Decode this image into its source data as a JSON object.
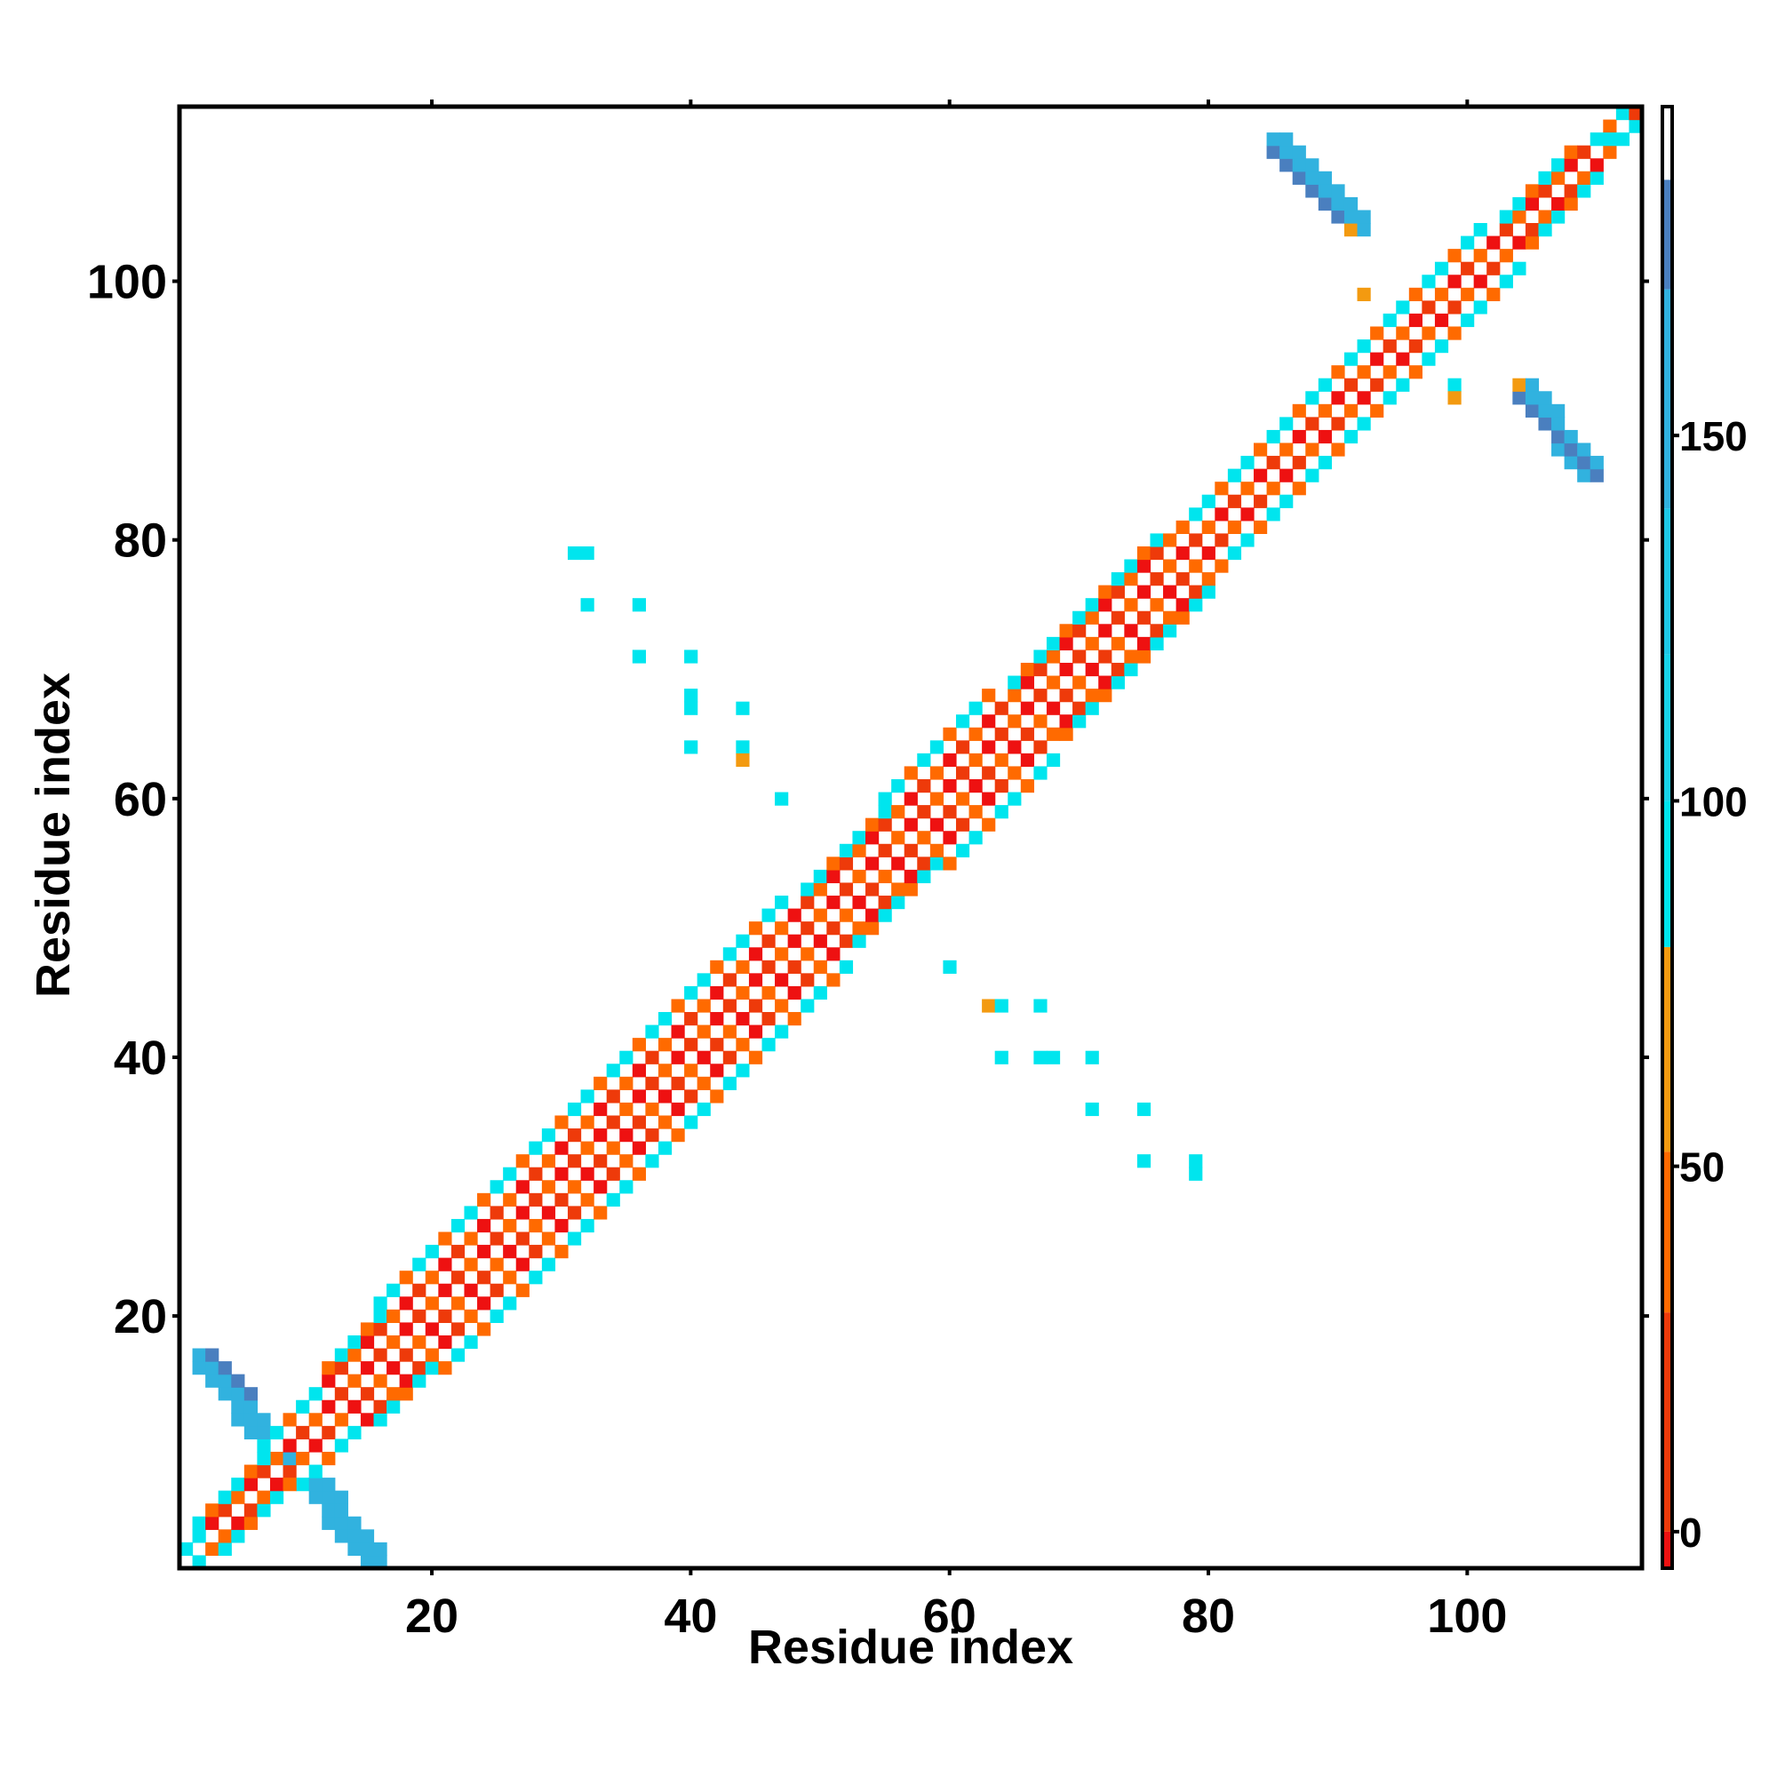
{
  "chart_data": {
    "type": "heatmap",
    "title": "",
    "xlabel": "Residue index",
    "ylabel": "Residue index",
    "xlim": [
      1,
      113
    ],
    "ylim": [
      1,
      113
    ],
    "x_ticks": [
      20,
      40,
      60,
      80,
      100
    ],
    "y_ticks": [
      20,
      40,
      60,
      80,
      100
    ],
    "colorbar": {
      "range": [
        -5,
        195
      ],
      "ticks": [
        0,
        50,
        100,
        150
      ],
      "bins": [
        {
          "from": -5,
          "to": 0,
          "color": "#ee1111"
        },
        {
          "from": 0,
          "to": 30,
          "color": "#ee3a0a"
        },
        {
          "from": 30,
          "to": 52,
          "color": "#ff6a00"
        },
        {
          "from": 52,
          "to": 80,
          "color": "#f39a10"
        },
        {
          "from": 80,
          "to": 100,
          "color": "#00e5ee"
        },
        {
          "from": 100,
          "to": 120,
          "color": "#18d4ea"
        },
        {
          "from": 120,
          "to": 140,
          "color": "#1ec8e6"
        },
        {
          "from": 140,
          "to": 170,
          "color": "#31b2df"
        },
        {
          "from": 170,
          "to": 185,
          "color": "#4a7fbf"
        },
        {
          "from": 185,
          "to": 195,
          "color": "#ffffff"
        }
      ]
    },
    "diagonal_band": {
      "half_width_by_position": [
        [
          1,
          1
        ],
        [
          5,
          2
        ],
        [
          12,
          3
        ],
        [
          15,
          4
        ],
        [
          22,
          5
        ],
        [
          45,
          5
        ],
        [
          55,
          4
        ],
        [
          60,
          5
        ],
        [
          85,
          3
        ],
        [
          100,
          3
        ],
        [
          113,
          1
        ]
      ],
      "pattern": [
        "#ee1111",
        "#ff6a00",
        "#ee3a0a",
        "#f39a10",
        "#ff6a00",
        "#00e5ee"
      ]
    },
    "clusters": [
      {
        "x": [
          2,
          16
        ],
        "y": [
          1,
          17
        ],
        "axis": "anti-diagonal",
        "color": "#31b2df"
      },
      {
        "x": [
          85,
          92
        ],
        "y": [
          104,
          111
        ],
        "axis": "anti-diagonal",
        "color": "#31b2df"
      },
      {
        "x": [
          104,
          110
        ],
        "y": [
          85,
          92
        ],
        "axis": "anti-diagonal",
        "color": "#31b2df"
      }
    ],
    "cells": [
      {
        "x": 31,
        "y": 79,
        "v": 90
      },
      {
        "x": 32,
        "y": 79,
        "v": 90
      },
      {
        "x": 32,
        "y": 75,
        "v": 90
      },
      {
        "x": 36,
        "y": 75,
        "v": 90
      },
      {
        "x": 36,
        "y": 71,
        "v": 90
      },
      {
        "x": 40,
        "y": 71,
        "v": 90
      },
      {
        "x": 40,
        "y": 68,
        "v": 90
      },
      {
        "x": 40,
        "y": 67,
        "v": 90
      },
      {
        "x": 44,
        "y": 67,
        "v": 90
      },
      {
        "x": 40,
        "y": 64,
        "v": 90
      },
      {
        "x": 44,
        "y": 64,
        "v": 90
      },
      {
        "x": 44,
        "y": 63,
        "v": 60
      },
      {
        "x": 47,
        "y": 60,
        "v": 90
      },
      {
        "x": 60,
        "y": 47,
        "v": 90
      },
      {
        "x": 63,
        "y": 44,
        "v": 60
      },
      {
        "x": 64,
        "y": 44,
        "v": 90
      },
      {
        "x": 67,
        "y": 44,
        "v": 90
      },
      {
        "x": 64,
        "y": 40,
        "v": 90
      },
      {
        "x": 67,
        "y": 40,
        "v": 90
      },
      {
        "x": 68,
        "y": 40,
        "v": 90
      },
      {
        "x": 71,
        "y": 40,
        "v": 90
      },
      {
        "x": 71,
        "y": 36,
        "v": 90
      },
      {
        "x": 75,
        "y": 36,
        "v": 90
      },
      {
        "x": 75,
        "y": 32,
        "v": 90
      },
      {
        "x": 79,
        "y": 32,
        "v": 90
      },
      {
        "x": 79,
        "y": 31,
        "v": 90
      },
      {
        "x": 91,
        "y": 104,
        "v": 60
      },
      {
        "x": 92,
        "y": 99,
        "v": 60
      },
      {
        "x": 99,
        "y": 92,
        "v": 90
      },
      {
        "x": 99,
        "y": 91,
        "v": 60
      },
      {
        "x": 104,
        "y": 92,
        "v": 60
      },
      {
        "x": 112,
        "y": 113,
        "v": 90
      },
      {
        "x": 113,
        "y": 112,
        "v": 90
      },
      {
        "x": 113,
        "y": 113,
        "v": 0
      },
      {
        "x": 111,
        "y": 111,
        "v": 90
      }
    ]
  }
}
